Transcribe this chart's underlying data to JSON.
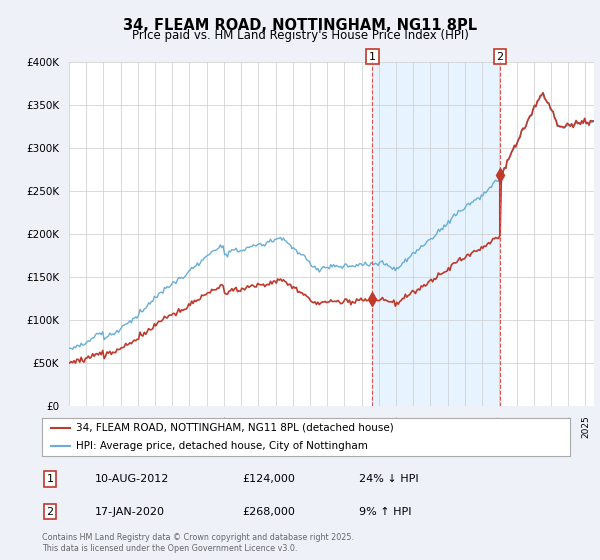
{
  "title": "34, FLEAM ROAD, NOTTINGHAM, NG11 8PL",
  "subtitle": "Price paid vs. HM Land Registry's House Price Index (HPI)",
  "red_label": "34, FLEAM ROAD, NOTTINGHAM, NG11 8PL (detached house)",
  "blue_label": "HPI: Average price, detached house, City of Nottingham",
  "marker1_date": "10-AUG-2012",
  "marker1_price": 124000,
  "marker1_text": "24% ↓ HPI",
  "marker2_date": "17-JAN-2020",
  "marker2_price": 268000,
  "marker2_text": "9% ↑ HPI",
  "footer": "Contains HM Land Registry data © Crown copyright and database right 2025.\nThis data is licensed under the Open Government Licence v3.0.",
  "ylim": [
    0,
    400000
  ],
  "hpi_color": "#6aaed6",
  "red_color": "#c0392b",
  "shade_color": "#ddeeff",
  "dashed_color": "#e05050",
  "bg_color": "#eef2f8",
  "plot_bg": "#ffffff",
  "grid_color": "#cccccc"
}
